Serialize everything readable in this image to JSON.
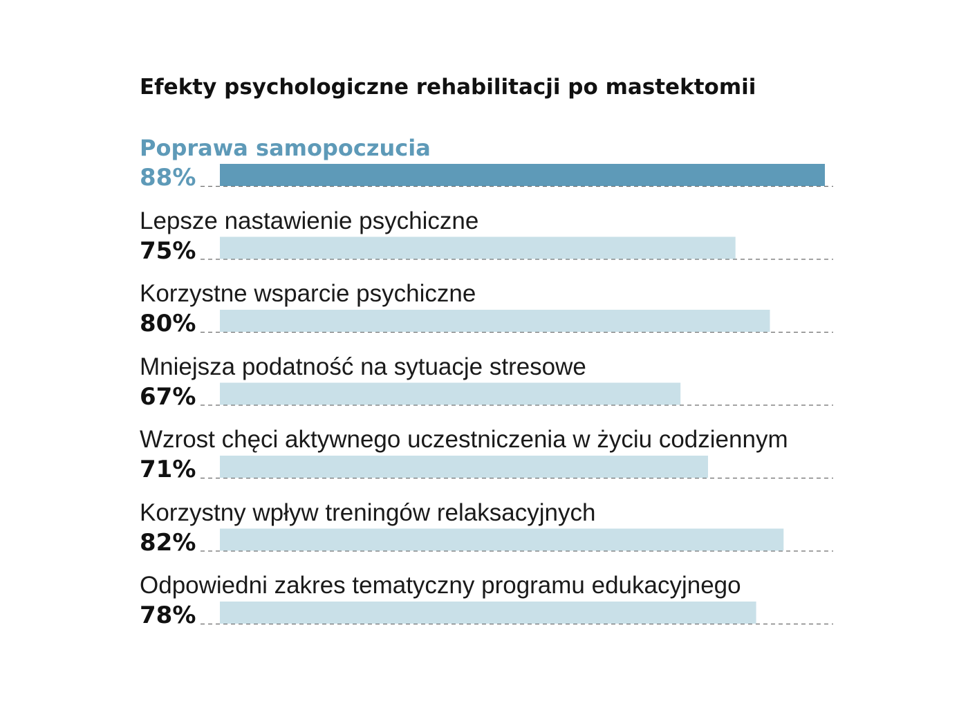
{
  "chart_data": {
    "type": "bar",
    "orientation": "horizontal",
    "title": "Efekty psychologiczne rehabilitacji po mastektomii",
    "xlim": [
      0,
      100
    ],
    "grid": false,
    "legend": "none",
    "colors": {
      "highlight": "#5e9ab8",
      "bar": "#c9e0e8",
      "baseline": "#6b6b6b"
    },
    "highlight_index": 0,
    "categories": [
      "Poprawa samopoczucia",
      "Lepsze nastawienie psychiczne",
      "Korzystne wsparcie psychiczne",
      "Mniejsza podatność na sytuacje stresowe",
      "Wzrost chęci aktywnego uczestniczenia w życiu codziennym",
      "Korzystny wpływ treningów relaksacyjnych",
      "Odpowiedni zakres tematyczny programu edukacyjnego"
    ],
    "values": [
      88,
      75,
      80,
      67,
      71,
      82,
      78
    ],
    "value_labels": [
      "88%",
      "75%",
      "80%",
      "67%",
      "71%",
      "82%",
      "78%"
    ]
  }
}
